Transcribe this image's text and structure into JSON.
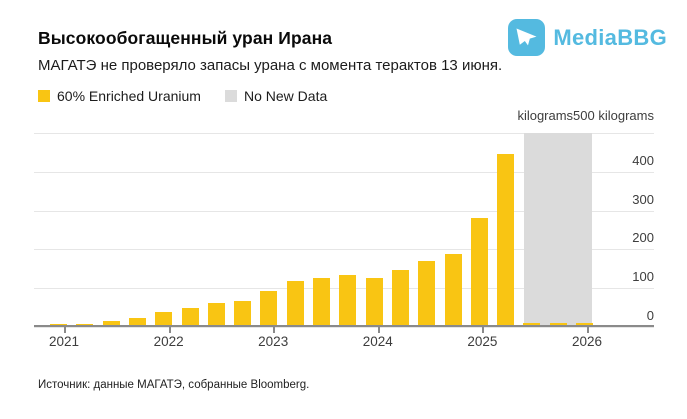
{
  "header": {
    "title": "Высокообогащенный уран Ирана",
    "subtitle": "МАГАТЭ не проверяло запасы урана с момента терактов 13 июня."
  },
  "brand": {
    "name": "MediaBBG",
    "icon": "telegram-paper-plane",
    "color": "#54BAE0"
  },
  "legend": {
    "items": [
      {
        "label": "60% Enriched Uranium",
        "color": "#F9C513"
      },
      {
        "label": "No New Data",
        "color": "#DBDBDB"
      }
    ]
  },
  "chart_data": {
    "type": "bar",
    "title": "Высокообогащенный уран Ирана",
    "series_name": "60% Enriched Uranium",
    "unit_label": "kilograms500 kilograms",
    "categories": [
      "2021 Q1",
      "2021 Q2",
      "2021 Q3",
      "2021 Q4",
      "2022 Q1",
      "2022 Q2",
      "2022 Q3",
      "2022 Q4",
      "2023 Q1",
      "2023 Q2",
      "2023 Q3",
      "2023 Q4",
      "2024 Q1",
      "2024 Q2",
      "2024 Q3",
      "2024 Q4",
      "2025 Q1",
      "2025 Q2"
    ],
    "values": [
      1,
      2.4,
      10,
      17.7,
      33.2,
      43.1,
      55.6,
      62.3,
      87.5,
      114.1,
      121.6,
      128.3,
      121.5,
      142.1,
      164.7,
      182.3,
      274.8,
      440.9
    ],
    "y_ticks": [
      0,
      100,
      200,
      300,
      400
    ],
    "ylim": [
      0,
      500
    ],
    "x_tick_years": [
      "2021",
      "2022",
      "2023",
      "2024",
      "2025",
      "2026"
    ],
    "no_data_band": {
      "label": "No New Data",
      "quarters": [
        "2025 Q3",
        "2025 Q4",
        "2026 Q1"
      ]
    },
    "grid": true,
    "legend_position": "top-left",
    "bar_color": "#F9C513",
    "band_color": "#DBDBDB"
  },
  "source": "Источник: данные МАГАТЭ, собранные Bloomberg."
}
